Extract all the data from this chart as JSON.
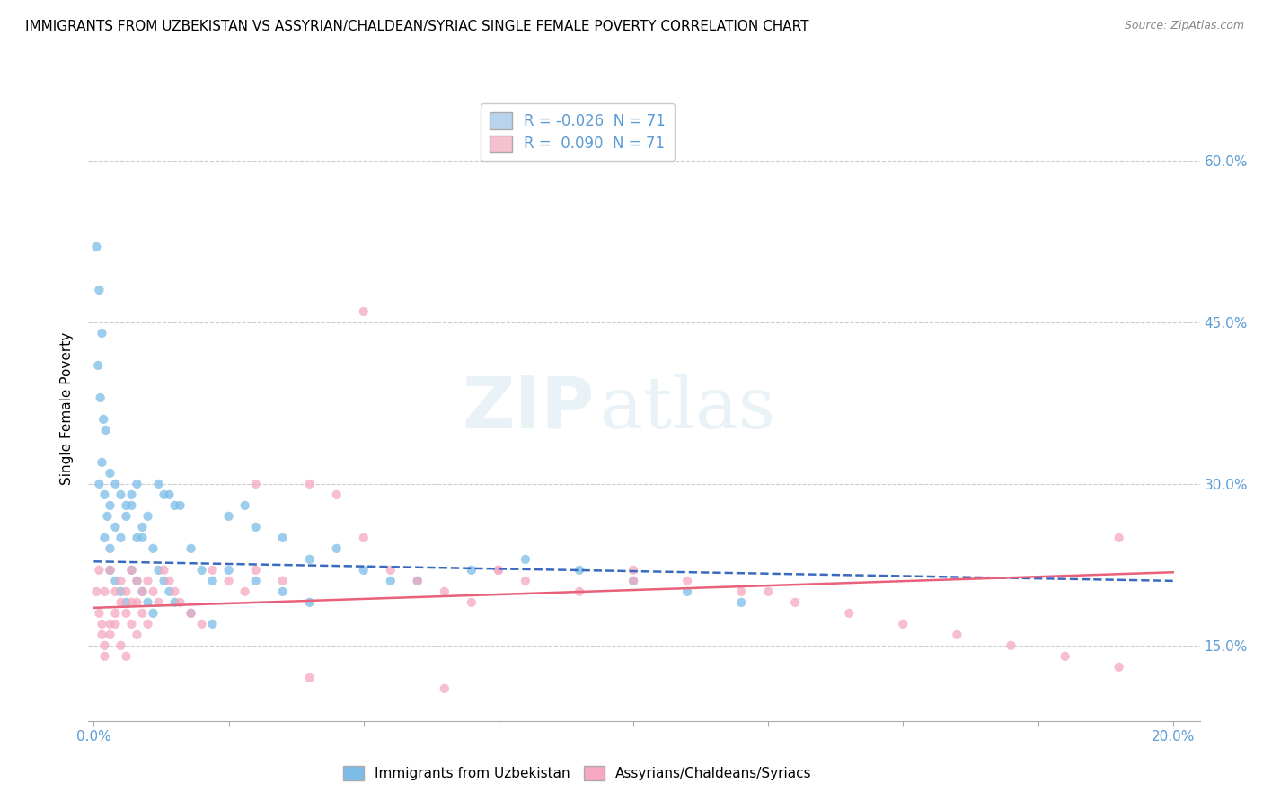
{
  "title": "IMMIGRANTS FROM UZBEKISTAN VS ASSYRIAN/CHALDEAN/SYRIAC SINGLE FEMALE POVERTY CORRELATION CHART",
  "source": "Source: ZipAtlas.com",
  "ylabel": "Single Female Poverty",
  "y_ticks": [
    0.15,
    0.3,
    0.45,
    0.6
  ],
  "y_tick_labels": [
    "15.0%",
    "30.0%",
    "45.0%",
    "60.0%"
  ],
  "x_lim": [
    -0.001,
    0.205
  ],
  "y_lim": [
    0.08,
    0.66
  ],
  "watermark_zip": "ZIP",
  "watermark_atlas": "atlas",
  "legend_top": [
    {
      "label": "R = -0.026  N = 71",
      "color": "#b8d4ec"
    },
    {
      "label": "R =  0.090  N = 71",
      "color": "#f5c0d0"
    }
  ],
  "legend_bottom_labels": [
    "Immigrants from Uzbekistan",
    "Assyrians/Chaldeans/Syriacs"
  ],
  "blue_scatter_x": [
    0.0005,
    0.001,
    0.0015,
    0.0008,
    0.0012,
    0.0018,
    0.0022,
    0.0015,
    0.001,
    0.002,
    0.003,
    0.0025,
    0.002,
    0.003,
    0.004,
    0.003,
    0.005,
    0.004,
    0.006,
    0.005,
    0.007,
    0.006,
    0.008,
    0.007,
    0.009,
    0.008,
    0.01,
    0.009,
    0.011,
    0.012,
    0.013,
    0.014,
    0.015,
    0.016,
    0.018,
    0.02,
    0.022,
    0.025,
    0.028,
    0.03,
    0.035,
    0.04,
    0.045,
    0.05,
    0.055,
    0.06,
    0.07,
    0.08,
    0.09,
    0.1,
    0.11,
    0.12,
    0.003,
    0.004,
    0.005,
    0.006,
    0.007,
    0.008,
    0.009,
    0.01,
    0.011,
    0.012,
    0.013,
    0.014,
    0.015,
    0.018,
    0.022,
    0.025,
    0.03,
    0.035,
    0.04
  ],
  "blue_scatter_y": [
    0.52,
    0.48,
    0.44,
    0.41,
    0.38,
    0.36,
    0.35,
    0.32,
    0.3,
    0.29,
    0.31,
    0.27,
    0.25,
    0.28,
    0.3,
    0.24,
    0.29,
    0.26,
    0.28,
    0.25,
    0.29,
    0.27,
    0.3,
    0.28,
    0.26,
    0.25,
    0.27,
    0.25,
    0.24,
    0.3,
    0.29,
    0.29,
    0.28,
    0.28,
    0.24,
    0.22,
    0.21,
    0.27,
    0.28,
    0.26,
    0.25,
    0.23,
    0.24,
    0.22,
    0.21,
    0.21,
    0.22,
    0.23,
    0.22,
    0.21,
    0.2,
    0.19,
    0.22,
    0.21,
    0.2,
    0.19,
    0.22,
    0.21,
    0.2,
    0.19,
    0.18,
    0.22,
    0.21,
    0.2,
    0.19,
    0.18,
    0.17,
    0.22,
    0.21,
    0.2,
    0.19
  ],
  "pink_scatter_x": [
    0.0005,
    0.001,
    0.0015,
    0.001,
    0.002,
    0.0015,
    0.002,
    0.003,
    0.002,
    0.003,
    0.004,
    0.003,
    0.004,
    0.005,
    0.004,
    0.005,
    0.006,
    0.005,
    0.006,
    0.007,
    0.006,
    0.007,
    0.008,
    0.007,
    0.008,
    0.009,
    0.008,
    0.009,
    0.01,
    0.01,
    0.011,
    0.012,
    0.013,
    0.014,
    0.015,
    0.016,
    0.018,
    0.02,
    0.022,
    0.025,
    0.028,
    0.03,
    0.035,
    0.04,
    0.045,
    0.05,
    0.055,
    0.06,
    0.065,
    0.07,
    0.075,
    0.08,
    0.09,
    0.1,
    0.11,
    0.12,
    0.13,
    0.14,
    0.15,
    0.16,
    0.17,
    0.18,
    0.19,
    0.03,
    0.05,
    0.075,
    0.1,
    0.125,
    0.19,
    0.04,
    0.065
  ],
  "pink_scatter_y": [
    0.2,
    0.18,
    0.16,
    0.22,
    0.2,
    0.17,
    0.15,
    0.17,
    0.14,
    0.16,
    0.18,
    0.22,
    0.2,
    0.19,
    0.17,
    0.15,
    0.14,
    0.21,
    0.2,
    0.19,
    0.18,
    0.17,
    0.16,
    0.22,
    0.21,
    0.2,
    0.19,
    0.18,
    0.17,
    0.21,
    0.2,
    0.19,
    0.22,
    0.21,
    0.2,
    0.19,
    0.18,
    0.17,
    0.22,
    0.21,
    0.2,
    0.22,
    0.21,
    0.3,
    0.29,
    0.46,
    0.22,
    0.21,
    0.2,
    0.19,
    0.22,
    0.21,
    0.2,
    0.22,
    0.21,
    0.2,
    0.19,
    0.18,
    0.17,
    0.16,
    0.15,
    0.14,
    0.13,
    0.3,
    0.25,
    0.22,
    0.21,
    0.2,
    0.25,
    0.12,
    0.11
  ],
  "blue_line_x": [
    0.0,
    0.2
  ],
  "blue_line_y": [
    0.228,
    0.21
  ],
  "pink_line_x": [
    0.0,
    0.2
  ],
  "pink_line_y": [
    0.185,
    0.218
  ],
  "blue_scatter_color": "#7bbde8",
  "pink_scatter_color": "#f5a8bf",
  "blue_line_color": "#3a6abf",
  "pink_line_color": "#e8607a",
  "grid_color": "#cccccc",
  "tick_color": "#5b9bd5",
  "background_color": "#ffffff"
}
